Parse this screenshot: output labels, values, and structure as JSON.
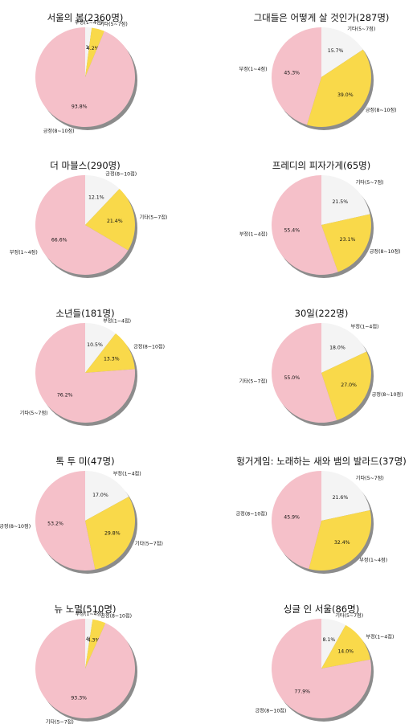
{
  "colors": {
    "positive": "#f5c0c9",
    "neutral": "#f9d94a",
    "other": "#f4f4f4",
    "shadow": "#8c8c8c",
    "text": "#111111"
  },
  "chart_data": [
    {
      "type": "pie",
      "title": "서울의 봄(2360명)",
      "slices": [
        {
          "label": "부정(1~4점)",
          "value": 2.1,
          "pct_text": "2.1%",
          "color": "#f4f4f4"
        },
        {
          "label": "기타(5~7점)",
          "value": 4.2,
          "pct_text": "4.2%",
          "color": "#f9d94a"
        },
        {
          "label": "긍정(8~10점)",
          "value": 93.8,
          "pct_text": "93.8%",
          "color": "#f5c0c9"
        }
      ]
    },
    {
      "type": "pie",
      "title": "그대들은 어떻게 살 것인가(287명)",
      "slices": [
        {
          "label": "기타(5~7점)",
          "value": 15.7,
          "pct_text": "15.7%",
          "color": "#f4f4f4"
        },
        {
          "label": "긍정(8~10점)",
          "value": 39.0,
          "pct_text": "39.0%",
          "color": "#f9d94a"
        },
        {
          "label": "부정(1~4점)",
          "value": 45.3,
          "pct_text": "45.3%",
          "color": "#f5c0c9"
        }
      ]
    },
    {
      "type": "pie",
      "title": "더 마블스(290명)",
      "slices": [
        {
          "label": "긍정(8~10점)",
          "value": 12.1,
          "pct_text": "12.1%",
          "color": "#f4f4f4"
        },
        {
          "label": "기타(5~7점)",
          "value": 21.4,
          "pct_text": "21.4%",
          "color": "#f9d94a"
        },
        {
          "label": "부정(1~4점)",
          "value": 66.6,
          "pct_text": "66.6%",
          "color": "#f5c0c9"
        }
      ]
    },
    {
      "type": "pie",
      "title": "프레디의 피자가게(65명)",
      "slices": [
        {
          "label": "기타(5~7점)",
          "value": 21.5,
          "pct_text": "21.5%",
          "color": "#f4f4f4"
        },
        {
          "label": "긍정(8~10점)",
          "value": 23.1,
          "pct_text": "23.1%",
          "color": "#f9d94a"
        },
        {
          "label": "부정(1~4점)",
          "value": 55.4,
          "pct_text": "55.4%",
          "color": "#f5c0c9"
        }
      ]
    },
    {
      "type": "pie",
      "title": "소년들(181명)",
      "slices": [
        {
          "label": "부정(1~4점)",
          "value": 10.5,
          "pct_text": "10.5%",
          "color": "#f4f4f4"
        },
        {
          "label": "긍정(8~10점)",
          "value": 13.3,
          "pct_text": "13.3%",
          "color": "#f9d94a"
        },
        {
          "label": "기타(5~7점)",
          "value": 76.2,
          "pct_text": "76.2%",
          "color": "#f5c0c9"
        }
      ]
    },
    {
      "type": "pie",
      "title": "30일(222명)",
      "slices": [
        {
          "label": "부정(1~4점)",
          "value": 18.0,
          "pct_text": "18.0%",
          "color": "#f4f4f4"
        },
        {
          "label": "긍정(8~10점)",
          "value": 27.0,
          "pct_text": "27.0%",
          "color": "#f9d94a"
        },
        {
          "label": "기타(5~7점)",
          "value": 55.0,
          "pct_text": "55.0%",
          "color": "#f5c0c9"
        }
      ]
    },
    {
      "type": "pie",
      "title": "톡 투 미(47명)",
      "slices": [
        {
          "label": "부정(1~4점)",
          "value": 17.0,
          "pct_text": "17.0%",
          "color": "#f4f4f4"
        },
        {
          "label": "기타(5~7점)",
          "value": 29.8,
          "pct_text": "29.8%",
          "color": "#f9d94a"
        },
        {
          "label": "긍정(8~10점)",
          "value": 53.2,
          "pct_text": "53.2%",
          "color": "#f5c0c9"
        }
      ]
    },
    {
      "type": "pie",
      "title": "헝거게임: 노래하는 새와 뱀의 발라드(37명)",
      "slices": [
        {
          "label": "기타(5~7점)",
          "value": 21.6,
          "pct_text": "21.6%",
          "color": "#f4f4f4"
        },
        {
          "label": "부정(1~4점)",
          "value": 32.4,
          "pct_text": "32.4%",
          "color": "#f9d94a"
        },
        {
          "label": "긍정(8~10점)",
          "value": 45.9,
          "pct_text": "45.9%",
          "color": "#f5c0c9"
        }
      ]
    },
    {
      "type": "pie",
      "title": "뉴 노멀(510명)",
      "slices": [
        {
          "label": "부정(1~4점)",
          "value": 2.4,
          "pct_text": "2.4%",
          "color": "#f4f4f4"
        },
        {
          "label": "긍정(8~10점)",
          "value": 4.3,
          "pct_text": "4.3%",
          "color": "#f9d94a"
        },
        {
          "label": "기타(5~7점)",
          "value": 93.3,
          "pct_text": "93.3%",
          "color": "#f5c0c9"
        }
      ]
    },
    {
      "type": "pie",
      "title": "싱글 인 서울(86명)",
      "slices": [
        {
          "label": "기타(5~7점)",
          "value": 8.1,
          "pct_text": "8.1%",
          "color": "#f4f4f4"
        },
        {
          "label": "부정(1~4점)",
          "value": 14.0,
          "pct_text": "14.0%",
          "color": "#f9d94a"
        },
        {
          "label": "긍정(8~10점)",
          "value": 77.9,
          "pct_text": "77.9%",
          "color": "#f5c0c9"
        }
      ]
    }
  ]
}
